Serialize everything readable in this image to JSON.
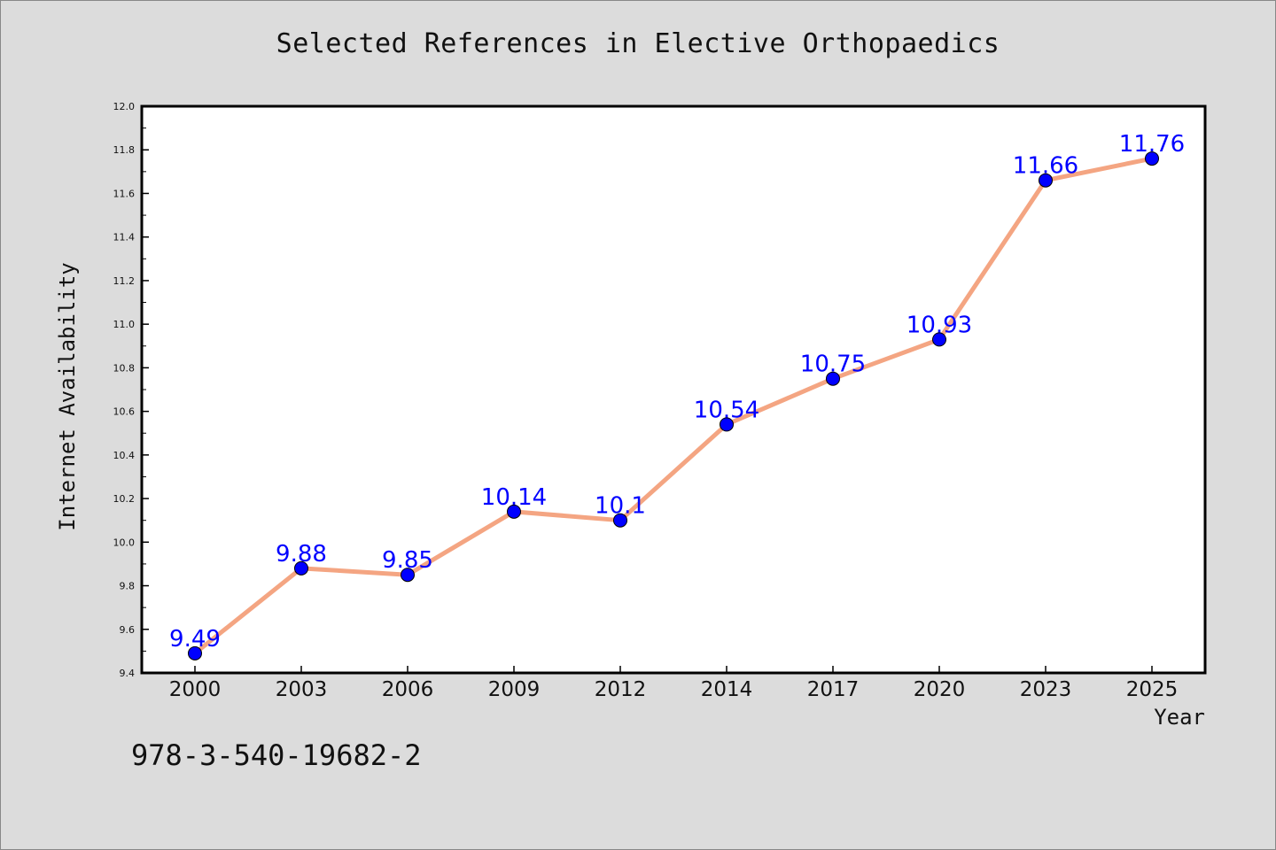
{
  "chart_data": {
    "type": "line",
    "title": "Selected References in Elective Orthopaedics",
    "xlabel": "Year",
    "ylabel": "Internet Availability",
    "categories": [
      "2000",
      "2003",
      "2006",
      "2009",
      "2012",
      "2014",
      "2017",
      "2020",
      "2023",
      "2025"
    ],
    "series": [
      {
        "values": [
          9.49,
          9.88,
          9.85,
          10.14,
          10.1,
          10.54,
          10.75,
          10.93,
          11.66,
          11.76
        ],
        "data_labels": [
          "9.49",
          "9.88",
          "9.85",
          "10.14",
          "10.1",
          "10.54",
          "10.75",
          "10.93",
          "11.66",
          "11.76"
        ],
        "line_color": "#f4a582",
        "marker_color": "#0000ff"
      }
    ],
    "ylim": [
      9.4,
      12.0
    ],
    "yticks": [
      "9.4",
      "9.6",
      "9.8",
      "10.0",
      "10.2",
      "10.4",
      "10.6",
      "10.8",
      "11.0",
      "11.2",
      "11.4",
      "11.6",
      "11.8",
      "12.0"
    ],
    "grid": false,
    "legend": "none",
    "label_color": "#0000ff",
    "plot_background": "#ffffff",
    "page_background": "#dcdcdc"
  },
  "footnote": "978-3-540-19682-2"
}
